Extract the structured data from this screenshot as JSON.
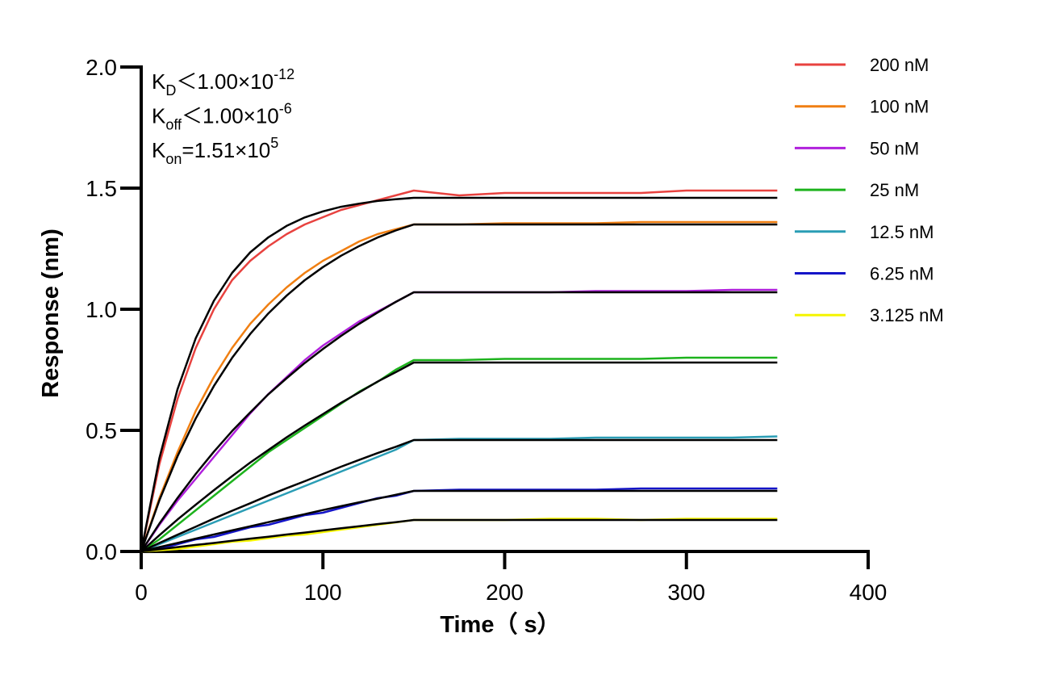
{
  "chart_data": {
    "type": "line",
    "x_label": "Time（ s）",
    "y_label": "Response (nm)",
    "annotations": [
      {
        "symbol": "K",
        "subscript": "D",
        "relation": "＜",
        "mantissa": "1.00×10",
        "exponent": "-12"
      },
      {
        "symbol": "K",
        "subscript": "off",
        "relation": "＜",
        "mantissa": "1.00×10",
        "exponent": "-6"
      },
      {
        "symbol": "K",
        "subscript": "on",
        "relation": "=",
        "mantissa": "1.51×10",
        "exponent": "5"
      }
    ],
    "xlim": [
      0,
      400
    ],
    "xticks": [
      0,
      100,
      200,
      300,
      400
    ],
    "ylim": [
      0,
      2
    ],
    "yticks": [
      {
        "value": 0,
        "label": "0.0"
      },
      {
        "value": 0.5,
        "label": "0.5"
      },
      {
        "value": 1,
        "label": "1.0"
      },
      {
        "value": 1.5,
        "label": "1.5"
      },
      {
        "value": 2,
        "label": "2.0"
      }
    ],
    "x": [
      0,
      10,
      20,
      30,
      40,
      50,
      60,
      70,
      80,
      90,
      100,
      110,
      120,
      130,
      140,
      150,
      175,
      200,
      225,
      250,
      275,
      300,
      325,
      350
    ],
    "series": [
      {
        "name": "200 nM",
        "color": "#e8423f",
        "values": [
          0,
          0.36,
          0.63,
          0.84,
          1.0,
          1.12,
          1.2,
          1.26,
          1.31,
          1.35,
          1.38,
          1.41,
          1.43,
          1.45,
          1.47,
          1.49,
          1.47,
          1.48,
          1.48,
          1.48,
          1.48,
          1.49,
          1.49,
          1.49
        ]
      },
      {
        "name": "100 nM",
        "color": "#f07f12",
        "values": [
          0,
          0.22,
          0.41,
          0.58,
          0.72,
          0.84,
          0.94,
          1.02,
          1.09,
          1.15,
          1.2,
          1.24,
          1.28,
          1.31,
          1.33,
          1.35,
          1.35,
          1.355,
          1.355,
          1.355,
          1.36,
          1.36,
          1.36,
          1.36
        ]
      },
      {
        "name": "50 nM",
        "color": "#b020dc",
        "values": [
          0,
          0.11,
          0.21,
          0.3,
          0.39,
          0.48,
          0.57,
          0.65,
          0.72,
          0.79,
          0.85,
          0.9,
          0.95,
          0.99,
          1.03,
          1.07,
          1.07,
          1.07,
          1.07,
          1.075,
          1.075,
          1.075,
          1.08,
          1.08
        ]
      },
      {
        "name": "25 nM",
        "color": "#1db31d",
        "values": [
          0,
          0.05,
          0.11,
          0.17,
          0.23,
          0.29,
          0.35,
          0.41,
          0.46,
          0.51,
          0.56,
          0.61,
          0.66,
          0.7,
          0.75,
          0.79,
          0.79,
          0.795,
          0.795,
          0.795,
          0.795,
          0.8,
          0.8,
          0.8
        ]
      },
      {
        "name": "12.5 nM",
        "color": "#2a9db5",
        "values": [
          0,
          0.03,
          0.06,
          0.09,
          0.12,
          0.15,
          0.18,
          0.21,
          0.24,
          0.27,
          0.3,
          0.33,
          0.36,
          0.39,
          0.42,
          0.46,
          0.465,
          0.465,
          0.465,
          0.47,
          0.47,
          0.47,
          0.47,
          0.475
        ]
      },
      {
        "name": "6.25 nM",
        "color": "#1414c8",
        "values": [
          0,
          0.01,
          0.03,
          0.05,
          0.06,
          0.08,
          0.1,
          0.11,
          0.13,
          0.15,
          0.16,
          0.18,
          0.2,
          0.22,
          0.23,
          0.25,
          0.255,
          0.255,
          0.255,
          0.255,
          0.26,
          0.26,
          0.26,
          0.26
        ]
      },
      {
        "name": "3.125 nM",
        "color": "#f5f500",
        "values": [
          0,
          0.005,
          0.01,
          0.02,
          0.03,
          0.04,
          0.045,
          0.055,
          0.065,
          0.07,
          0.08,
          0.09,
          0.1,
          0.11,
          0.12,
          0.13,
          0.13,
          0.13,
          0.135,
          0.135,
          0.13,
          0.135,
          0.135,
          0.135
        ]
      }
    ],
    "fits": [
      {
        "color": "#000000",
        "values": [
          0,
          0.385,
          0.67,
          0.88,
          1.035,
          1.15,
          1.235,
          1.297,
          1.344,
          1.379,
          1.404,
          1.423,
          1.436,
          1.447,
          1.454,
          1.46,
          1.46,
          1.46,
          1.46,
          1.46,
          1.46,
          1.46,
          1.46,
          1.46
        ]
      },
      {
        "color": "#000000",
        "values": [
          0,
          0.211,
          0.393,
          0.549,
          0.683,
          0.799,
          0.898,
          0.983,
          1.056,
          1.12,
          1.174,
          1.221,
          1.261,
          1.296,
          1.325,
          1.35,
          1.35,
          1.35,
          1.35,
          1.35,
          1.35,
          1.35,
          1.35,
          1.35
        ]
      },
      {
        "color": "#000000",
        "values": [
          0,
          0.115,
          0.221,
          0.32,
          0.412,
          0.497,
          0.574,
          0.649,
          0.715,
          0.778,
          0.836,
          0.89,
          0.94,
          0.986,
          1.03,
          1.07,
          1.07,
          1.07,
          1.07,
          1.07,
          1.07,
          1.07,
          1.07,
          1.07
        ]
      },
      {
        "color": "#000000",
        "values": [
          0,
          0.067,
          0.132,
          0.193,
          0.253,
          0.311,
          0.367,
          0.419,
          0.471,
          0.52,
          0.567,
          0.614,
          0.657,
          0.701,
          0.74,
          0.78,
          0.78,
          0.78,
          0.78,
          0.78,
          0.78,
          0.78,
          0.78,
          0.78
        ]
      },
      {
        "color": "#000000",
        "values": [
          0,
          0.035,
          0.069,
          0.102,
          0.136,
          0.168,
          0.199,
          0.231,
          0.261,
          0.29,
          0.32,
          0.35,
          0.378,
          0.406,
          0.432,
          0.46,
          0.46,
          0.46,
          0.46,
          0.46,
          0.46,
          0.46,
          0.46,
          0.46
        ]
      },
      {
        "color": "#000000",
        "values": [
          0,
          0.018,
          0.035,
          0.053,
          0.07,
          0.087,
          0.104,
          0.121,
          0.138,
          0.154,
          0.171,
          0.187,
          0.203,
          0.218,
          0.234,
          0.25,
          0.25,
          0.25,
          0.25,
          0.25,
          0.25,
          0.25,
          0.25,
          0.25
        ]
      },
      {
        "color": "#000000",
        "values": [
          0,
          0.009,
          0.018,
          0.027,
          0.035,
          0.044,
          0.053,
          0.061,
          0.07,
          0.078,
          0.087,
          0.096,
          0.104,
          0.113,
          0.121,
          0.13,
          0.13,
          0.13,
          0.13,
          0.13,
          0.13,
          0.13,
          0.13,
          0.13
        ]
      }
    ]
  }
}
